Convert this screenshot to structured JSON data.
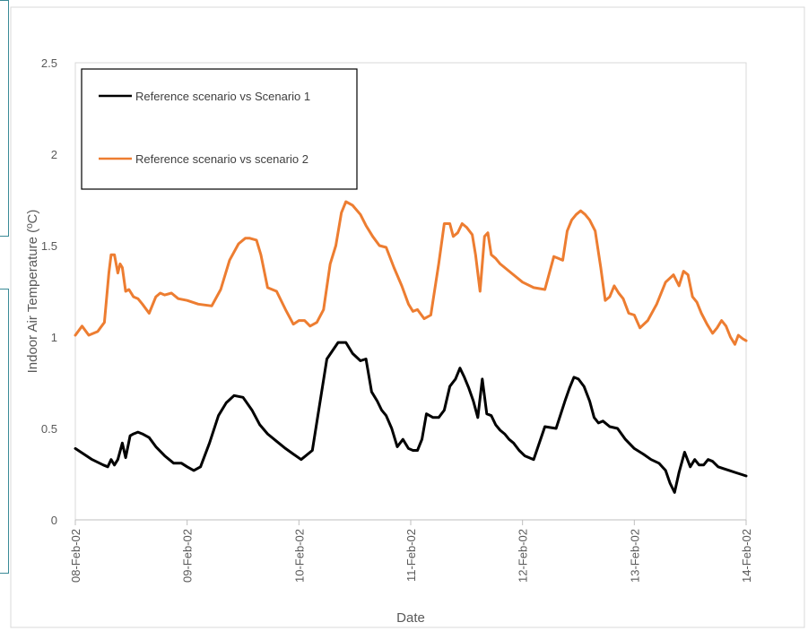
{
  "chart_data": {
    "type": "line",
    "xlabel": "Date",
    "ylabel": "Indoor Air Temperature (ºC)",
    "ylim": [
      0,
      2.5
    ],
    "y_ticks": [
      "0",
      "0.5",
      "1",
      "1.5",
      "2",
      "2.5"
    ],
    "x_ticks": [
      "08-Feb-02",
      "09-Feb-02",
      "10-Feb-02",
      "11-Feb-02",
      "12-Feb-02",
      "13-Feb-02",
      "14-Feb-02"
    ],
    "grid": false,
    "legend_position": "top-left",
    "series": [
      {
        "name": "Reference scenario vs Scenario 1",
        "color": "#000000",
        "x": [
          0.0,
          0.15,
          0.25,
          0.29,
          0.32,
          0.35,
          0.38,
          0.42,
          0.45,
          0.49,
          0.52,
          0.56,
          0.6,
          0.66,
          0.72,
          0.8,
          0.88,
          0.95,
          1.0,
          1.06,
          1.12,
          1.2,
          1.28,
          1.35,
          1.42,
          1.5,
          1.58,
          1.65,
          1.72,
          1.8,
          1.88,
          1.95,
          2.02,
          2.12,
          2.25,
          2.35,
          2.42,
          2.48,
          2.55,
          2.6,
          2.65,
          2.7,
          2.74,
          2.78,
          2.83,
          2.88,
          2.93,
          2.98,
          3.02,
          3.06,
          3.1,
          3.14,
          3.2,
          3.25,
          3.3,
          3.35,
          3.4,
          3.44,
          3.48,
          3.52,
          3.56,
          3.6,
          3.64,
          3.68,
          3.72,
          3.76,
          3.8,
          3.84,
          3.88,
          3.92,
          3.97,
          4.02,
          4.1,
          4.2,
          4.3,
          4.38,
          4.42,
          4.46,
          4.5,
          4.55,
          4.6,
          4.64,
          4.68,
          4.72,
          4.78,
          4.85,
          4.92,
          5.0,
          5.08,
          5.15,
          5.22,
          5.28,
          5.32,
          5.36,
          5.4,
          5.45,
          5.5,
          5.54,
          5.58,
          5.62,
          5.66,
          5.7,
          5.75,
          5.8,
          5.85,
          5.9,
          5.95,
          6.0
        ],
        "y": [
          0.39,
          0.33,
          0.3,
          0.29,
          0.33,
          0.3,
          0.33,
          0.42,
          0.34,
          0.46,
          0.47,
          0.48,
          0.47,
          0.45,
          0.4,
          0.35,
          0.31,
          0.31,
          0.29,
          0.27,
          0.29,
          0.42,
          0.57,
          0.64,
          0.68,
          0.67,
          0.6,
          0.52,
          0.47,
          0.43,
          0.39,
          0.36,
          0.33,
          0.38,
          0.88,
          0.97,
          0.97,
          0.91,
          0.87,
          0.88,
          0.7,
          0.65,
          0.6,
          0.57,
          0.5,
          0.4,
          0.44,
          0.39,
          0.38,
          0.38,
          0.44,
          0.58,
          0.56,
          0.56,
          0.6,
          0.73,
          0.77,
          0.83,
          0.78,
          0.72,
          0.65,
          0.56,
          0.77,
          0.58,
          0.57,
          0.52,
          0.49,
          0.47,
          0.44,
          0.42,
          0.38,
          0.35,
          0.33,
          0.51,
          0.5,
          0.65,
          0.72,
          0.78,
          0.77,
          0.73,
          0.65,
          0.56,
          0.53,
          0.54,
          0.51,
          0.5,
          0.44,
          0.39,
          0.36,
          0.33,
          0.31,
          0.27,
          0.2,
          0.15,
          0.26,
          0.37,
          0.29,
          0.33,
          0.3,
          0.3,
          0.33,
          0.32,
          0.29,
          0.28,
          0.27,
          0.26,
          0.25,
          0.24
        ]
      },
      {
        "name": "Reference scenario vs scenario 2",
        "color": "#ed7d31",
        "x": [
          0.0,
          0.06,
          0.12,
          0.2,
          0.26,
          0.3,
          0.32,
          0.35,
          0.38,
          0.4,
          0.42,
          0.45,
          0.48,
          0.52,
          0.56,
          0.6,
          0.66,
          0.72,
          0.76,
          0.8,
          0.86,
          0.92,
          1.0,
          1.1,
          1.22,
          1.3,
          1.38,
          1.46,
          1.52,
          1.56,
          1.62,
          1.66,
          1.72,
          1.8,
          1.88,
          1.95,
          2.0,
          2.05,
          2.1,
          2.16,
          2.22,
          2.28,
          2.33,
          2.38,
          2.42,
          2.48,
          2.55,
          2.6,
          2.66,
          2.72,
          2.78,
          2.85,
          2.92,
          2.98,
          3.02,
          3.06,
          3.12,
          3.18,
          3.25,
          3.3,
          3.35,
          3.38,
          3.42,
          3.46,
          3.5,
          3.55,
          3.58,
          3.62,
          3.66,
          3.69,
          3.72,
          3.76,
          3.8,
          3.9,
          4.0,
          4.1,
          4.2,
          4.28,
          4.32,
          4.36,
          4.4,
          4.44,
          4.48,
          4.52,
          4.56,
          4.6,
          4.65,
          4.7,
          4.74,
          4.78,
          4.82,
          4.86,
          4.9,
          4.95,
          5.0,
          5.05,
          5.12,
          5.2,
          5.28,
          5.35,
          5.4,
          5.44,
          5.48,
          5.52,
          5.56,
          5.6,
          5.65,
          5.7,
          5.74,
          5.78,
          5.82,
          5.86,
          5.9,
          5.93,
          5.97,
          6.0
        ],
        "y": [
          1.01,
          1.06,
          1.01,
          1.03,
          1.08,
          1.35,
          1.45,
          1.45,
          1.35,
          1.4,
          1.38,
          1.25,
          1.26,
          1.22,
          1.21,
          1.18,
          1.13,
          1.22,
          1.24,
          1.23,
          1.24,
          1.21,
          1.2,
          1.18,
          1.17,
          1.26,
          1.42,
          1.51,
          1.54,
          1.54,
          1.53,
          1.45,
          1.27,
          1.25,
          1.15,
          1.07,
          1.09,
          1.09,
          1.06,
          1.08,
          1.15,
          1.4,
          1.5,
          1.68,
          1.74,
          1.72,
          1.67,
          1.61,
          1.55,
          1.5,
          1.49,
          1.38,
          1.28,
          1.18,
          1.14,
          1.15,
          1.1,
          1.12,
          1.4,
          1.62,
          1.62,
          1.55,
          1.57,
          1.62,
          1.6,
          1.56,
          1.45,
          1.25,
          1.55,
          1.57,
          1.45,
          1.43,
          1.4,
          1.35,
          1.3,
          1.27,
          1.26,
          1.44,
          1.43,
          1.42,
          1.58,
          1.64,
          1.67,
          1.69,
          1.67,
          1.64,
          1.58,
          1.38,
          1.2,
          1.22,
          1.28,
          1.24,
          1.21,
          1.13,
          1.12,
          1.05,
          1.09,
          1.18,
          1.3,
          1.34,
          1.28,
          1.36,
          1.34,
          1.22,
          1.19,
          1.13,
          1.07,
          1.02,
          1.05,
          1.09,
          1.06,
          1.0,
          0.96,
          1.01,
          0.99,
          0.98
        ]
      }
    ]
  }
}
